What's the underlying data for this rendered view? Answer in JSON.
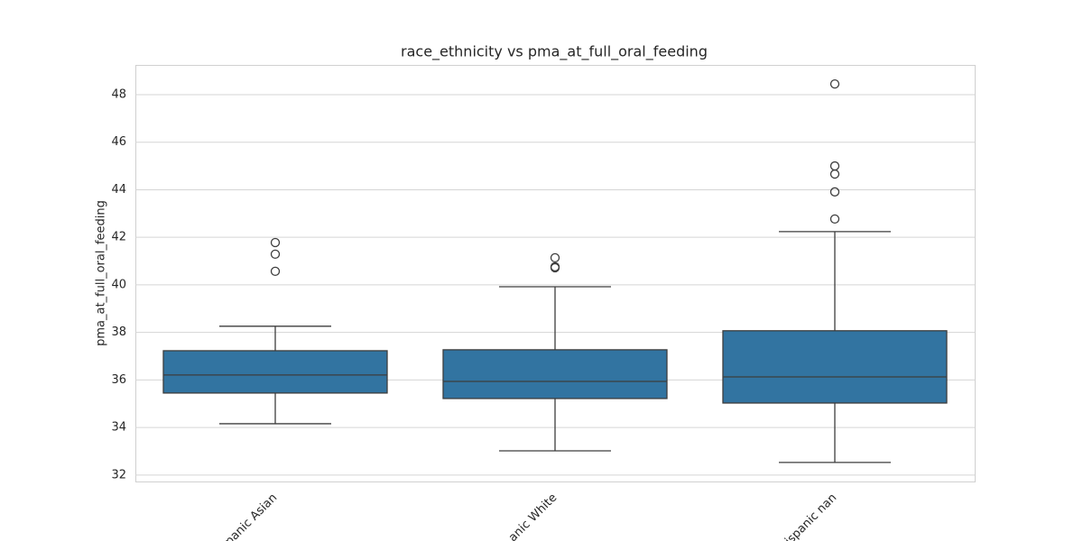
{
  "chart_data": {
    "type": "box",
    "title": "race_ethnicity vs pma_at_full_oral_feeding",
    "ylabel": "pma_at_full_oral_feeding",
    "categories": [
      "panic Asian",
      "anic White",
      "ispanic nan"
    ],
    "color": "#3274a1",
    "boxes": [
      {
        "whisker_low": 34.16,
        "q1": 35.45,
        "median": 36.21,
        "q3": 37.23,
        "whisker_high": 38.26,
        "outliers": [
          40.57,
          41.29,
          41.78
        ]
      },
      {
        "whisker_low": 33.02,
        "q1": 35.22,
        "median": 35.94,
        "q3": 37.27,
        "whisker_high": 39.92,
        "outliers": [
          40.72,
          40.76,
          41.14
        ]
      },
      {
        "whisker_low": 32.53,
        "q1": 35.03,
        "median": 36.13,
        "q3": 38.07,
        "whisker_high": 42.24,
        "outliers": [
          42.77,
          43.91,
          44.66,
          45.0,
          48.45
        ]
      }
    ],
    "ylim": [
      31.73,
      49.25
    ],
    "yticks": [
      32,
      34,
      36,
      38,
      40,
      42,
      44,
      46,
      48
    ],
    "grid": true
  }
}
